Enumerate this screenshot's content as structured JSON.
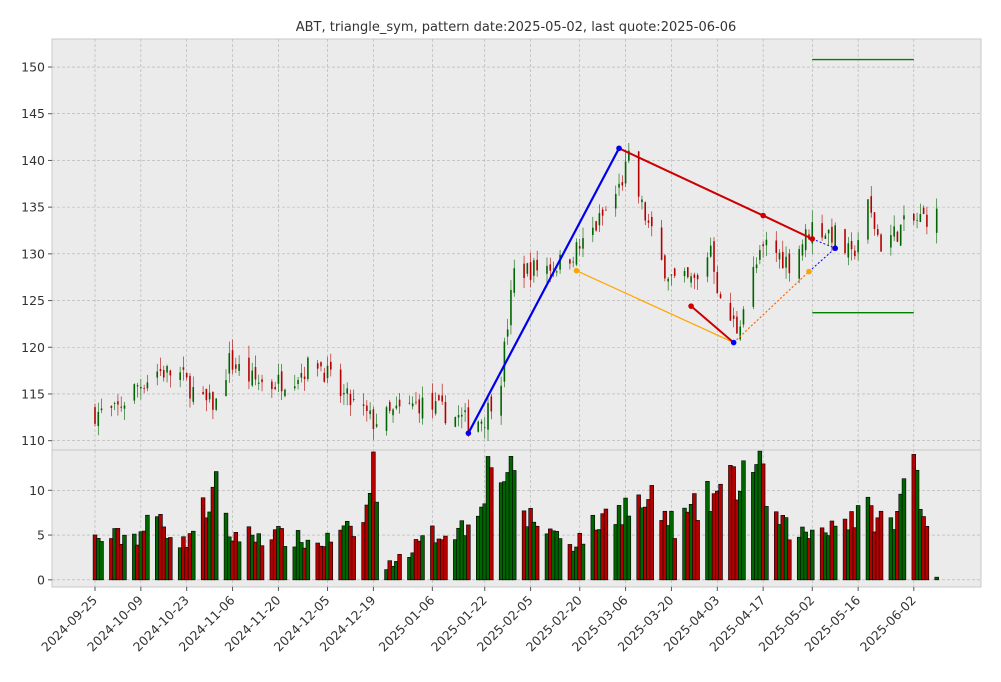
{
  "chart_data": {
    "type": "candlestick",
    "title": "ABT, triangle_sym, pattern date:2025-05-02, last quote:2025-06-06",
    "price_panel": {
      "ylim": [
        109,
        153
      ],
      "yticks": [
        110,
        115,
        120,
        125,
        130,
        135,
        140,
        145,
        150
      ],
      "grid": true
    },
    "volume_panel": {
      "ylim": [
        -0.8,
        14.5
      ],
      "yticks": [
        0,
        5,
        10
      ],
      "grid": true
    },
    "x_axis": {
      "start": "2024-09-25",
      "end": "2025-06-10",
      "ticks": [
        "2024-09-25",
        "2024-10-09",
        "2024-10-23",
        "2024-11-06",
        "2024-11-20",
        "2024-12-05",
        "2024-12-19",
        "2025-01-06",
        "2025-01-22",
        "2025-02-05",
        "2025-02-20",
        "2025-03-06",
        "2025-03-20",
        "2025-04-03",
        "2025-04-17",
        "2025-05-02",
        "2025-05-16",
        "2025-06-02"
      ]
    },
    "price_anchors": [
      [
        "2024-09-25",
        113
      ],
      [
        "2024-10-01",
        113
      ],
      [
        "2024-10-07",
        115.5
      ],
      [
        "2024-10-14",
        117.5
      ],
      [
        "2024-10-21",
        117
      ],
      [
        "2024-10-28",
        114
      ],
      [
        "2024-11-01",
        114
      ],
      [
        "2024-11-05",
        118.5
      ],
      [
        "2024-11-12",
        116.5
      ],
      [
        "2024-11-18",
        116
      ],
      [
        "2024-11-25",
        117
      ],
      [
        "2024-12-02",
        118.5
      ],
      [
        "2024-12-09",
        115
      ],
      [
        "2024-12-16",
        113
      ],
      [
        "2024-12-19",
        112
      ],
      [
        "2025-01-02",
        114
      ],
      [
        "2025-01-10",
        113
      ],
      [
        "2025-01-17",
        112
      ],
      [
        "2025-01-22",
        112.5
      ],
      [
        "2025-01-27",
        117
      ],
      [
        "2025-01-31",
        128
      ],
      [
        "2025-02-07",
        128.5
      ],
      [
        "2025-02-14",
        129
      ],
      [
        "2025-02-21",
        131
      ],
      [
        "2025-02-28",
        134.5
      ],
      [
        "2025-03-04",
        137
      ],
      [
        "2025-03-07",
        140
      ],
      [
        "2025-03-11",
        135
      ],
      [
        "2025-03-17",
        129
      ],
      [
        "2025-03-21",
        127
      ],
      [
        "2025-03-28",
        127
      ],
      [
        "2025-04-01",
        131
      ],
      [
        "2025-04-04",
        124.5
      ],
      [
        "2025-04-09",
        122
      ],
      [
        "2025-04-14",
        128
      ],
      [
        "2025-04-18",
        131
      ],
      [
        "2025-04-25",
        129
      ],
      [
        "2025-05-02",
        133
      ],
      [
        "2025-05-09",
        132
      ],
      [
        "2025-05-14",
        129.5
      ],
      [
        "2025-05-19",
        135
      ],
      [
        "2025-05-23",
        131
      ],
      [
        "2025-05-30",
        133
      ],
      [
        "2025-06-06",
        134
      ]
    ],
    "volume_anchors": [
      [
        "2024-09-25",
        4.5
      ],
      [
        "2024-10-08",
        5
      ],
      [
        "2024-10-14",
        7
      ],
      [
        "2024-10-22",
        4
      ],
      [
        "2024-11-01",
        10
      ],
      [
        "2024-11-05",
        5
      ],
      [
        "2024-11-18",
        5
      ],
      [
        "2024-12-02",
        4
      ],
      [
        "2024-12-16",
        6
      ],
      [
        "2024-12-19",
        12.3
      ],
      [
        "2024-12-23",
        1.5
      ],
      [
        "2025-01-06",
        5
      ],
      [
        "2025-01-17",
        6
      ],
      [
        "2025-01-24",
        13
      ],
      [
        "2025-01-29",
        12
      ],
      [
        "2025-02-04",
        7
      ],
      [
        "2025-02-18",
        4
      ],
      [
        "2025-03-03",
        8
      ],
      [
        "2025-03-14",
        8.5
      ],
      [
        "2025-03-21",
        6
      ],
      [
        "2025-04-04",
        10
      ],
      [
        "2025-04-09",
        11
      ],
      [
        "2025-04-14",
        13.5
      ],
      [
        "2025-04-22",
        6
      ],
      [
        "2025-04-30",
        5
      ],
      [
        "2025-05-05",
        6
      ],
      [
        "2025-05-19",
        7.5
      ],
      [
        "2025-05-27",
        6
      ],
      [
        "2025-06-02",
        14.2
      ],
      [
        "2025-06-09",
        0.3
      ]
    ],
    "pattern": {
      "impulse": [
        [
          "2025-01-17",
          110.8
        ],
        [
          "2025-03-04",
          141.3
        ]
      ],
      "upper_line": [
        [
          "2025-03-04",
          141.3
        ],
        [
          "2025-04-17",
          134.1
        ],
        [
          "2025-05-02",
          131.6
        ]
      ],
      "lower_line": [
        [
          "2025-03-26",
          124.4
        ],
        [
          "2025-04-08",
          120.5
        ],
        [
          "2025-05-01",
          128.1
        ]
      ],
      "lower_trend": [
        [
          "2025-02-19",
          128.2
        ],
        [
          "2025-04-08",
          120.5
        ]
      ],
      "apex": [
        "2025-05-09",
        130.6
      ],
      "target_upper": [
        [
          "2025-05-02",
          150.8
        ],
        [
          "2025-06-02",
          150.8
        ]
      ],
      "target_lower": [
        [
          "2025-05-02",
          123.7
        ],
        [
          "2025-06-02",
          123.7
        ]
      ]
    },
    "colors": {
      "up": "#006400",
      "down": "#b30000",
      "impulse": "#0000ee",
      "upper_line": "#cc0000",
      "lower_line": "#ff6600",
      "lower_trend": "#ffa500",
      "target": "#008000",
      "apex_dots": "#0000ee",
      "panel_bg": "#ebebeb",
      "grid": "#b0b0b0"
    }
  }
}
